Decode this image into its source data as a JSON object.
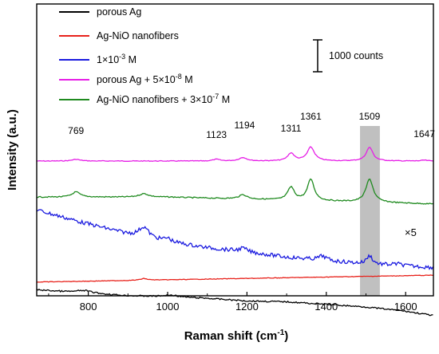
{
  "chart_data": {
    "type": "line",
    "xlabel_main": "Raman shift (cm",
    "xlabel_sup": "-1",
    "xlabel_end": ")",
    "ylabel": "Intensity (a.u.)",
    "xlim": [
      670,
      1670
    ],
    "ylim": [
      0,
      340
    ],
    "xticks": [
      800,
      1000,
      1200,
      1400,
      1600
    ],
    "xtick_labels": [
      "800",
      "1000",
      "1200",
      "1400",
      "1600"
    ],
    "y_ticks_shown": false,
    "grid": false,
    "legend_position": "top",
    "legend": [
      {
        "key": "porous",
        "label_pre": "porous Ag",
        "label_sup": "",
        "label_post": "",
        "color": "#000000"
      },
      {
        "key": "agnio",
        "label_pre": "Ag-NiO nanofibers",
        "label_sup": "",
        "label_post": "",
        "color": "#e8221b"
      },
      {
        "key": "solution",
        "label_pre": "1×10",
        "label_sup": "-3",
        "label_post": " M",
        "color": "#1a1adf"
      },
      {
        "key": "porous_analyte",
        "label_pre": "porous Ag + 5×10",
        "label_sup": "-8",
        "label_post": " M",
        "color": "#e61ee6"
      },
      {
        "key": "agnio_analyte",
        "label_pre": "Ag-NiO nanofibers + 3×10",
        "label_sup": "-7",
        "label_post": " M",
        "color": "#1f8a1f"
      }
    ],
    "scale_bar": {
      "label": "1000 counts",
      "length": 40
    },
    "highlight_band": {
      "x": [
        1485,
        1535
      ],
      "color": "#c0c0c0"
    },
    "multiplier_label": "×5",
    "peak_labels": [
      {
        "text": "769",
        "x": 769
      },
      {
        "text": "1123",
        "x": 1123
      },
      {
        "text": "1194",
        "x": 1194
      },
      {
        "text": "1311",
        "x": 1311
      },
      {
        "text": "1361",
        "x": 1361
      },
      {
        "text": "1509",
        "x": 1509
      },
      {
        "text": "1647",
        "x": 1647
      }
    ],
    "series": [
      {
        "key": "porous_analyte",
        "color": "#e61ee6",
        "baseline": [
          [
            670,
            183
          ],
          [
            1670,
            183
          ]
        ],
        "peaks": [
          [
            769,
            2,
            12
          ],
          [
            1123,
            2,
            10
          ],
          [
            1190,
            4,
            12
          ],
          [
            1311,
            9,
            10
          ],
          [
            1361,
            16,
            11
          ],
          [
            1509,
            16,
            10
          ],
          [
            1647,
            1,
            8
          ]
        ],
        "noise": 0.4
      },
      {
        "key": "agnio_analyte",
        "color": "#1f8a1f",
        "baseline": [
          [
            670,
            225
          ],
          [
            1000,
            225
          ],
          [
            1670,
            233
          ]
        ],
        "peaks": [
          [
            769,
            6,
            12
          ],
          [
            940,
            4,
            14
          ],
          [
            1190,
            5,
            12
          ],
          [
            1311,
            15,
            10
          ],
          [
            1361,
            25,
            10
          ],
          [
            1509,
            27,
            11
          ]
        ],
        "noise": 0.6
      },
      {
        "key": "solution",
        "color": "#1a1adf",
        "baseline": [
          [
            670,
            240
          ],
          [
            780,
            254
          ],
          [
            900,
            268
          ],
          [
            1000,
            277
          ],
          [
            1100,
            284
          ],
          [
            1200,
            289
          ],
          [
            1300,
            295
          ],
          [
            1400,
            299
          ],
          [
            1500,
            303
          ],
          [
            1670,
            307
          ]
        ],
        "peaks": [
          [
            940,
            12,
            15
          ],
          [
            1000,
            4,
            10
          ],
          [
            1190,
            4,
            12
          ],
          [
            1390,
            5,
            12
          ],
          [
            1509,
            10,
            9
          ],
          [
            1580,
            2,
            15
          ]
        ],
        "noise": 2.2
      },
      {
        "key": "agnio",
        "color": "#e8221b",
        "baseline": [
          [
            670,
            324
          ],
          [
            1670,
            316
          ]
        ],
        "peaks": [
          [
            940,
            2,
            10
          ]
        ],
        "noise": 0.3
      },
      {
        "key": "porous",
        "color": "#000000",
        "baseline": [
          [
            670,
            333
          ],
          [
            700,
            334
          ],
          [
            760,
            336
          ],
          [
            900,
            340
          ],
          [
            1000,
            341
          ],
          [
            1100,
            343
          ],
          [
            1200,
            346
          ],
          [
            1300,
            347
          ],
          [
            1400,
            350
          ],
          [
            1500,
            353
          ],
          [
            1600,
            358
          ],
          [
            1670,
            363
          ]
        ],
        "peaks": [
          [
            790,
            3,
            25
          ],
          [
            1010,
            2,
            20
          ]
        ],
        "noise": 0.8
      }
    ]
  }
}
